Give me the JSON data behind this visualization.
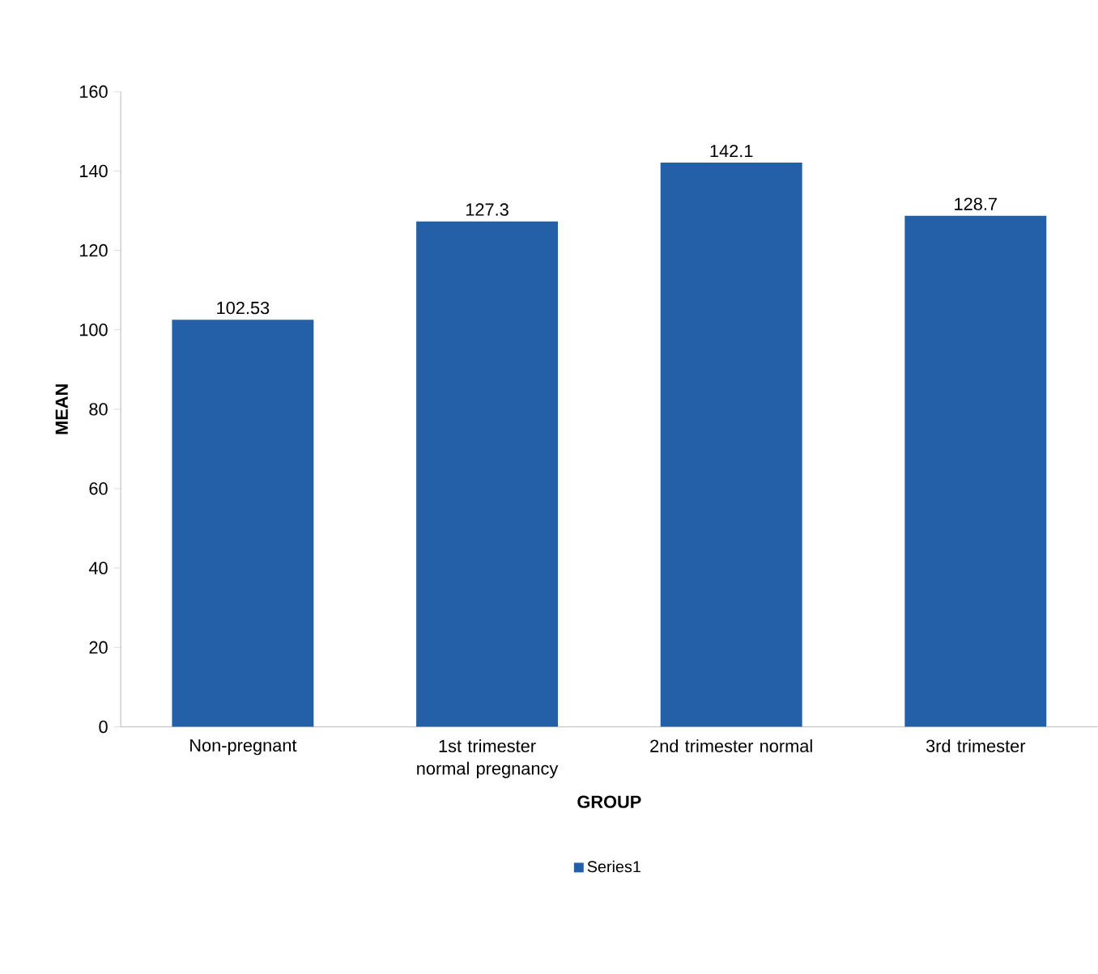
{
  "chart_data": {
    "type": "bar",
    "xlabel": "GROUP",
    "ylabel": "MEAN",
    "categories": [
      "Non-pregnant",
      "1st trimester normal pregnancy",
      "2nd trimester normal",
      "3rd trimester"
    ],
    "series": [
      {
        "name": "Series1",
        "color": "#2460a8",
        "values": [
          102.53,
          127.3,
          142.1,
          128.7
        ]
      }
    ],
    "ylim": [
      0,
      160
    ],
    "yticks": [
      0,
      20,
      40,
      60,
      80,
      100,
      120,
      140,
      160
    ],
    "data_labels": true,
    "legend": "bottom",
    "grid": false
  }
}
